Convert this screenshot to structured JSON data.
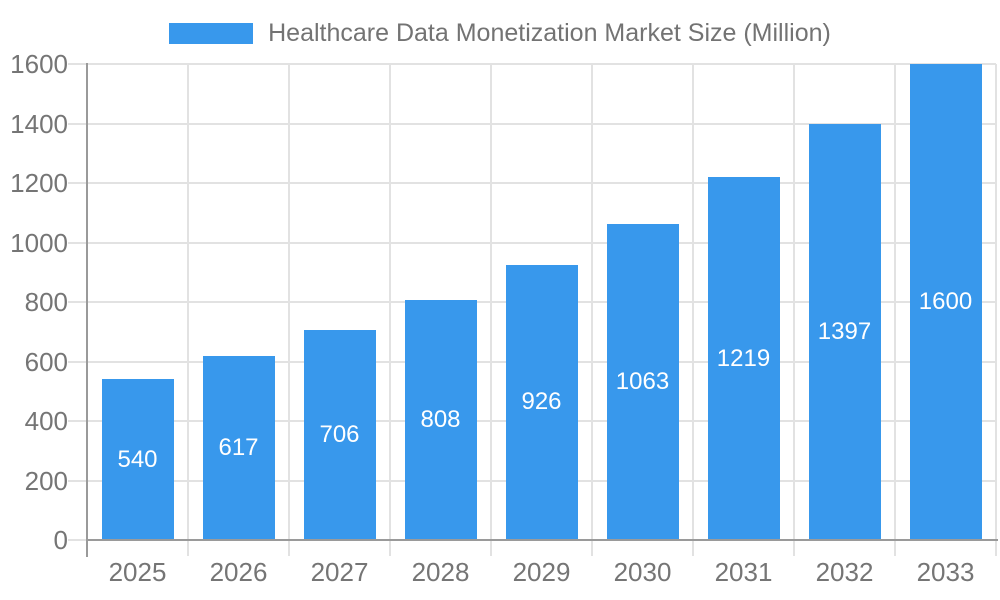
{
  "chart_data": {
    "type": "bar",
    "title": "Healthcare Data Monetization Market Size (Million)",
    "categories": [
      "2025",
      "2026",
      "2027",
      "2028",
      "2029",
      "2030",
      "2031",
      "2032",
      "2033"
    ],
    "values": [
      540,
      617,
      706,
      808,
      926,
      1063,
      1219,
      1397,
      1600
    ],
    "series": [
      {
        "name": "Healthcare Data Monetization Market Size (Million)",
        "values": [
          540,
          617,
          706,
          808,
          926,
          1063,
          1219,
          1397,
          1600
        ]
      }
    ],
    "xlabel": "",
    "ylabel": "",
    "ylim": [
      0,
      1600
    ],
    "yticks": [
      0,
      200,
      400,
      600,
      800,
      1000,
      1200,
      1400,
      1600
    ],
    "grid": true,
    "legend_position": "top",
    "value_labels": "centered-inside-bars",
    "colors": {
      "bar": "#3898ec",
      "grid": "#e2e2e2",
      "axis": "#9a9a9a",
      "tick_label": "#757575",
      "legend_label": "#737373",
      "value_label": "#ffffff",
      "background": "#ffffff"
    }
  }
}
